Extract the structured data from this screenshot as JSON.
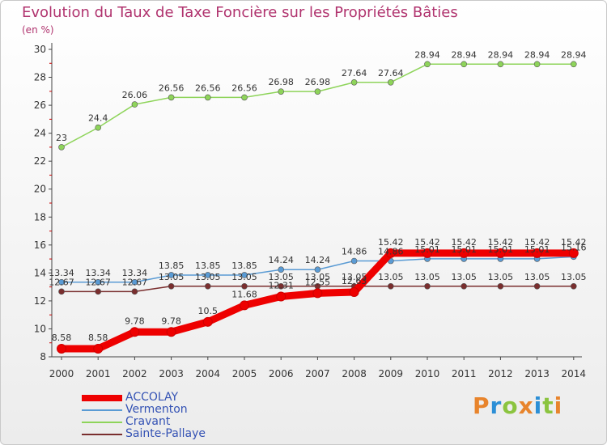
{
  "header": {
    "title": "Evolution du Taux de Taxe Foncière sur les Propriétés Bâties",
    "unit": "(en %)"
  },
  "brand": {
    "text": "Proxiti",
    "colors": [
      "#e8842c",
      "#2c8fd6",
      "#8bc43f",
      "#e8842c",
      "#2c8fd6",
      "#8bc43f",
      "#e8842c"
    ]
  },
  "chart_data": {
    "type": "line",
    "title": "Evolution du Taux de Taxe Foncière sur les Propriétés Bâties",
    "ylabel": "(en %)",
    "xlabel": "",
    "categories": [
      "2000",
      "2001",
      "2002",
      "2003",
      "2004",
      "2005",
      "2006",
      "2007",
      "2008",
      "2009",
      "2010",
      "2011",
      "2012",
      "2013",
      "2014"
    ],
    "ylim": [
      8,
      30
    ],
    "yticks": [
      8,
      10,
      12,
      14,
      16,
      18,
      20,
      22,
      24,
      26,
      28,
      30
    ],
    "grid": false,
    "legend_position": "bottom-left",
    "series": [
      {
        "name": "ACCOLAY",
        "color": "#ee0000",
        "values": [
          8.58,
          8.58,
          9.78,
          9.78,
          10.5,
          11.68,
          12.31,
          12.55,
          12.63,
          15.42,
          15.42,
          15.42,
          15.42,
          15.42,
          15.42
        ],
        "labels": [
          "8.58",
          "8.58",
          "9.78",
          "9.78",
          "10.5",
          "11.68",
          "12.31",
          "12.55",
          "12.63",
          "15.42",
          "15.42",
          "15.42",
          "15.42",
          "15.42",
          "15.42"
        ]
      },
      {
        "name": "Vermenton",
        "color": "#5a9bd4",
        "values": [
          13.34,
          13.34,
          13.34,
          13.85,
          13.85,
          13.85,
          14.24,
          14.24,
          14.86,
          14.86,
          15.01,
          15.01,
          15.01,
          15.01,
          15.16
        ],
        "labels": [
          "13.34",
          "13.34",
          "13.34",
          "13.85",
          "13.85",
          "13.85",
          "14.24",
          "14.24",
          "14.86",
          "14.86",
          "15.01",
          "15.01",
          "15.01",
          "15.01",
          "15.16"
        ]
      },
      {
        "name": "Cravant",
        "color": "#8ed45a",
        "values": [
          23,
          24.4,
          26.06,
          26.56,
          26.56,
          26.56,
          26.98,
          26.98,
          27.64,
          27.64,
          28.94,
          28.94,
          28.94,
          28.94,
          28.94
        ],
        "labels": [
          "23",
          "24.4",
          "26.06",
          "26.56",
          "26.56",
          "26.56",
          "26.98",
          "26.98",
          "27.64",
          "27.64",
          "28.94",
          "28.94",
          "28.94",
          "28.94",
          "28.94"
        ]
      },
      {
        "name": "Sainte-Pallaye",
        "color": "#7a2e2e",
        "values": [
          12.67,
          12.67,
          12.67,
          13.05,
          13.05,
          13.05,
          13.05,
          13.05,
          13.05,
          13.05,
          13.05,
          13.05,
          13.05,
          13.05,
          13.05
        ],
        "labels": [
          "12.67",
          "12.67",
          "12.67",
          "13.05",
          "13.05",
          "13.05",
          "13.05",
          "13.05",
          "13.05",
          "13.05",
          "13.05",
          "13.05",
          "13.05",
          "13.05",
          "13.05"
        ]
      }
    ]
  }
}
